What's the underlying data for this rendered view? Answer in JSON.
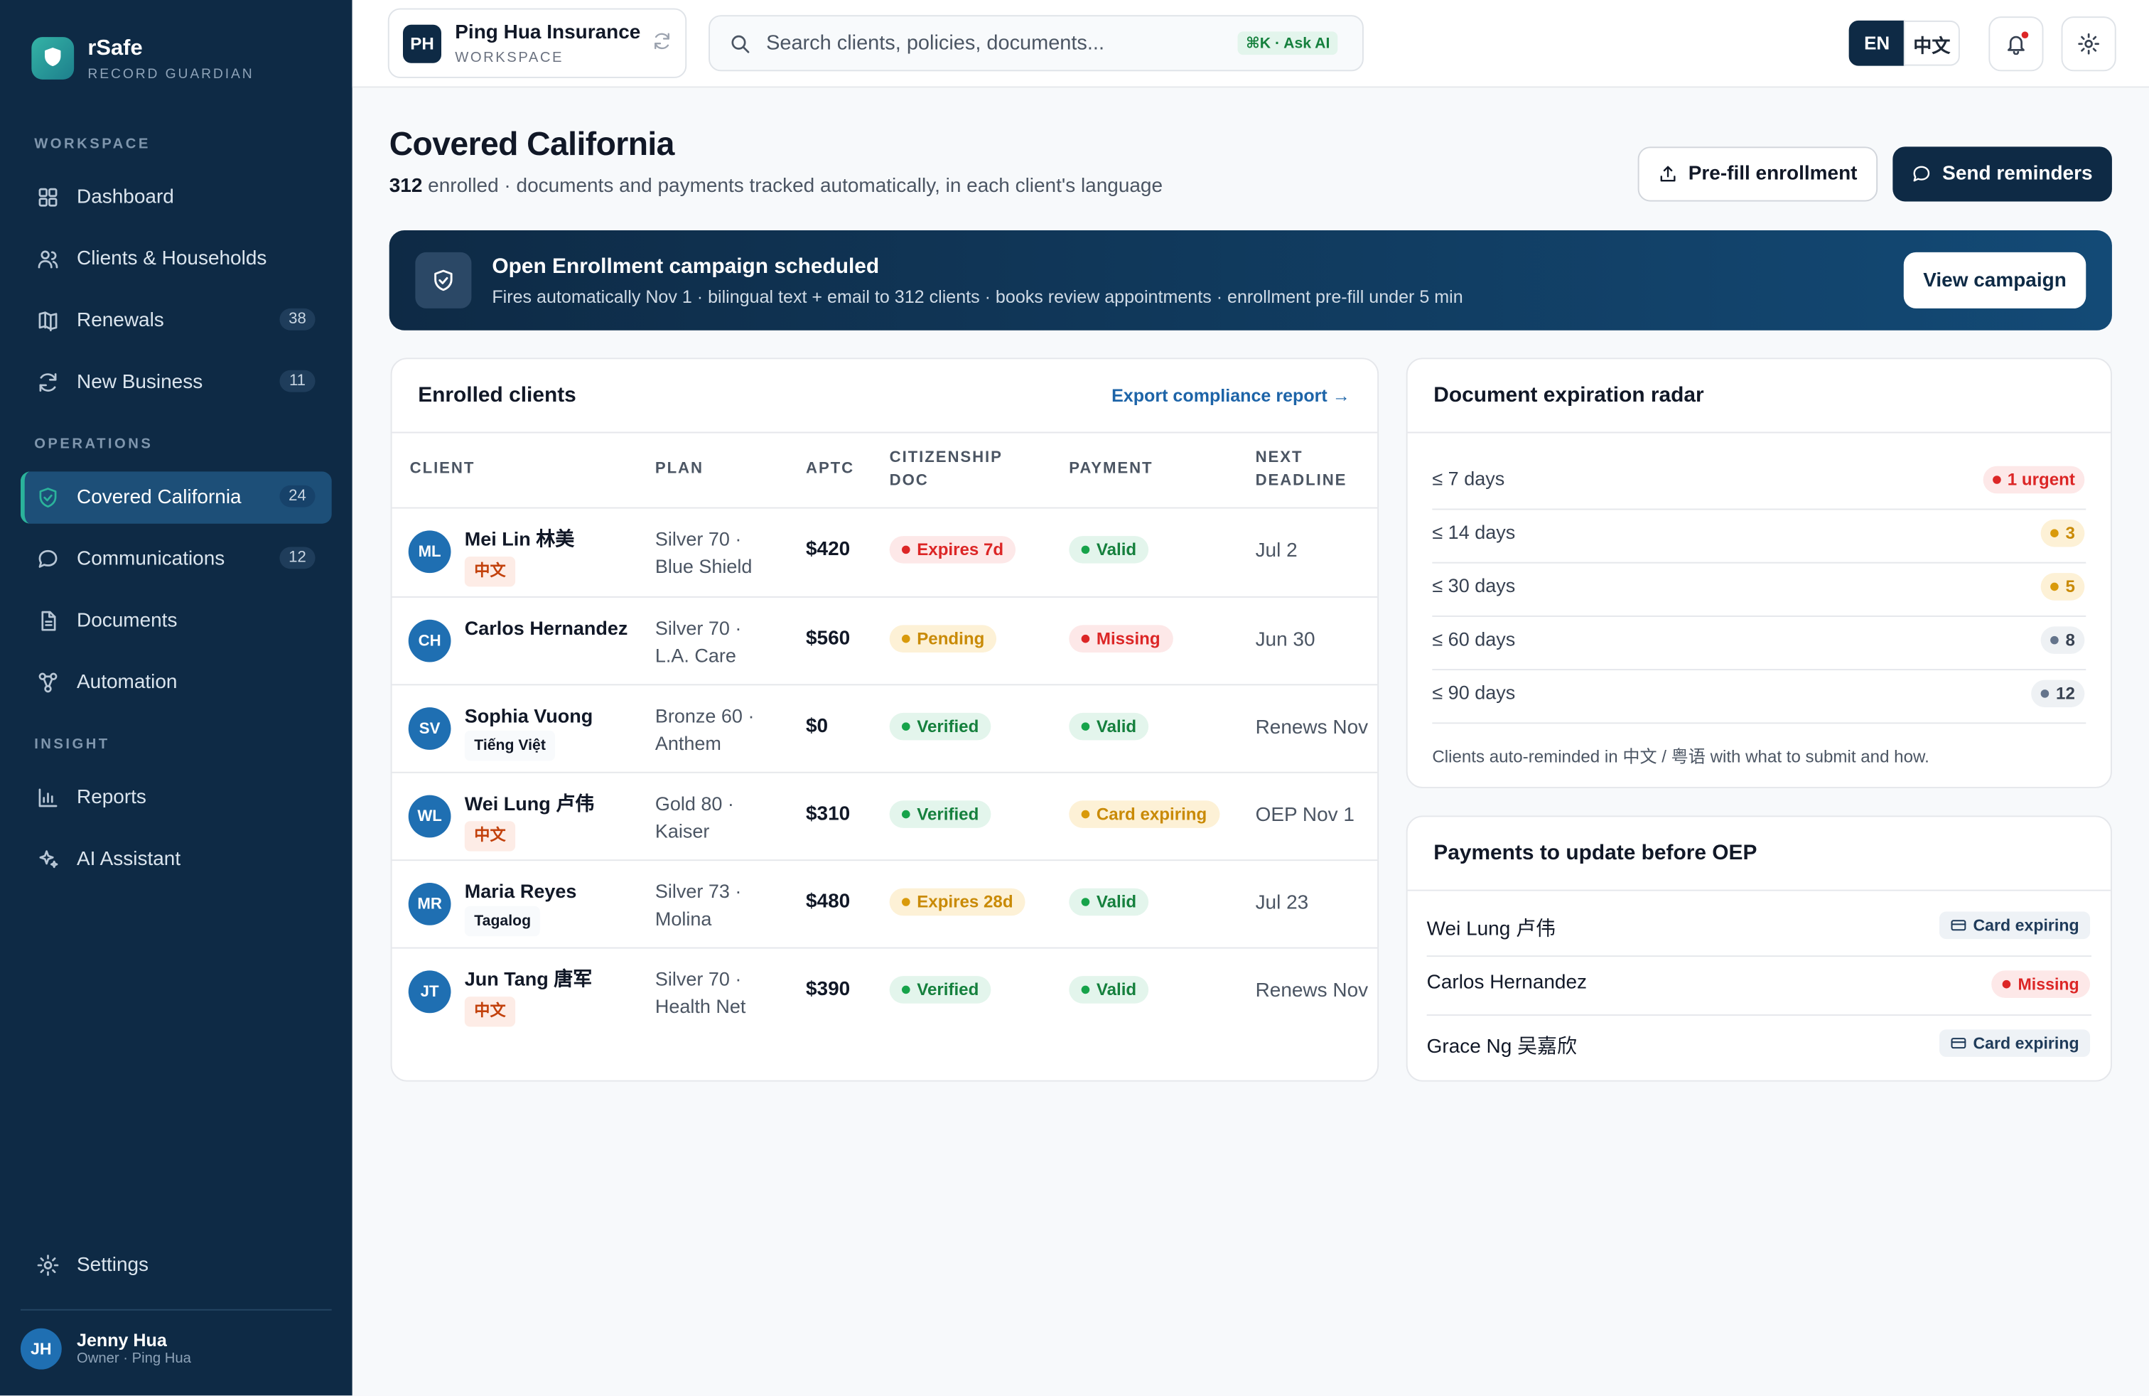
{
  "sidebar": {
    "brand": "rSafe",
    "tagline": "RECORD GUARDIAN",
    "sections": [
      {
        "label": "WORKSPACE",
        "items": [
          {
            "label": "Dashboard"
          },
          {
            "label": "Clients & Households"
          },
          {
            "label": "Renewals",
            "badge": 38
          },
          {
            "label": "New Business",
            "badge": 11
          }
        ]
      },
      {
        "label": "OPERATIONS",
        "items": [
          {
            "label": "Covered California",
            "badge": 24,
            "active": true
          },
          {
            "label": "Communications",
            "badge": 12
          },
          {
            "label": "Documents"
          },
          {
            "label": "Automation"
          }
        ]
      },
      {
        "label": "INSIGHT",
        "items": [
          {
            "label": "Reports"
          },
          {
            "label": "AI Assistant"
          }
        ]
      }
    ],
    "settings": "Settings",
    "user": {
      "initials": "JH",
      "name": "Jenny Hua",
      "role": "Owner · Ping Hua"
    }
  },
  "topbar": {
    "workspace": {
      "initials": "PH",
      "name": "Ping Hua Insurance",
      "label": "WORKSPACE"
    },
    "search": {
      "placeholder": "Search clients, policies, documents...",
      "shortcut": "⌘K · Ask AI"
    },
    "languages": [
      "EN",
      "中文"
    ]
  },
  "header": {
    "title": "Covered California",
    "enrolled_count": 312,
    "subtitle": "enrolled · documents and payments tracked automatically, in each client's language",
    "buttons": [
      "Pre-fill enrollment",
      "Send reminders"
    ]
  },
  "banner": {
    "title": "Open Enrollment campaign scheduled",
    "text": "Fires automatically Nov 1 · bilingual text + email to 312 clients · books review appointments · enrollment pre-fill under 5 min",
    "button": "View campaign"
  },
  "clients_table": {
    "title": "Enrolled clients",
    "link": "Export compliance report →",
    "columns": [
      "CLIENT",
      "PLAN",
      "APTC",
      "CITIZENSHIP DOC",
      "PAYMENT",
      "NEXT DEADLINE"
    ],
    "rows": [
      {
        "initials": "ML",
        "name": "Mei Lin 林美",
        "language": "中文",
        "plan": "Silver 70 · Blue Shield",
        "aptc": "$420",
        "citizenship_doc": "Expires 7d",
        "doc_tone": "red",
        "payment": "Valid",
        "payment_tone": "green",
        "deadline": "Jul 2"
      },
      {
        "initials": "CH",
        "name": "Carlos Hernandez",
        "plan": "Silver 70 · L.A. Care",
        "aptc": "$560",
        "citizenship_doc": "Pending",
        "doc_tone": "amber",
        "payment": "Missing",
        "payment_tone": "red",
        "deadline": "Jun 30"
      },
      {
        "initials": "SV",
        "name": "Sophia Vuong",
        "language": "Tiếng Việt",
        "plan": "Bronze 60 · Anthem",
        "aptc": "$0",
        "citizenship_doc": "Verified",
        "doc_tone": "green",
        "payment": "Valid",
        "payment_tone": "green",
        "deadline": "Renews Nov"
      },
      {
        "initials": "WL",
        "name": "Wei Lung 卢伟",
        "language": "中文",
        "plan": "Gold 80 · Kaiser",
        "aptc": "$310",
        "citizenship_doc": "Verified",
        "doc_tone": "green",
        "payment": "Card expiring",
        "payment_tone": "amber",
        "deadline": "OEP Nov 1"
      },
      {
        "initials": "MR",
        "name": "Maria Reyes",
        "language": "Tagalog",
        "plan": "Silver 73 · Molina",
        "aptc": "$480",
        "citizenship_doc": "Expires 28d",
        "doc_tone": "amber",
        "payment": "Valid",
        "payment_tone": "green",
        "deadline": "Jul 23"
      },
      {
        "initials": "JT",
        "name": "Jun Tang 唐军",
        "language": "中文",
        "plan": "Silver 70 · Health Net",
        "aptc": "$390",
        "citizenship_doc": "Verified",
        "doc_tone": "green",
        "payment": "Valid",
        "payment_tone": "green",
        "deadline": "Renews Nov"
      }
    ]
  },
  "expiration_radar": {
    "title": "Document expiration radar",
    "rows": [
      {
        "label": "≤ 7 days",
        "count": "1 urgent",
        "tone": "red"
      },
      {
        "label": "≤ 14 days",
        "count": 3,
        "tone": "amber"
      },
      {
        "label": "≤ 30 days",
        "count": 5,
        "tone": "amber"
      },
      {
        "label": "≤ 60 days",
        "count": 8,
        "tone": "gray"
      },
      {
        "label": "≤ 90 days",
        "count": 12,
        "tone": "gray"
      }
    ],
    "note": "Clients auto-reminded in 中文 / 粤语 with what to submit and how."
  },
  "payments": {
    "title": "Payments to update before OEP",
    "rows": [
      {
        "name": "Wei Lung 卢伟",
        "status": "Card expiring",
        "tone": "slate"
      },
      {
        "name": "Carlos Hernandez",
        "status": "Missing",
        "tone": "red"
      },
      {
        "name": "Grace Ng 吴嘉欣",
        "status": "Card expiring",
        "tone": "slate"
      }
    ]
  }
}
